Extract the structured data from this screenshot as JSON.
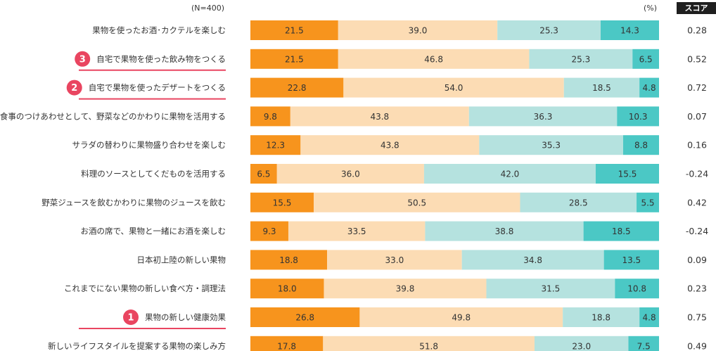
{
  "chart_data": {
    "type": "bar",
    "stacked": true,
    "orientation": "horizontal",
    "sample_note": "(N=400)",
    "unit_label": "(%)",
    "score_header": "スコア",
    "colors": [
      "#f7941d",
      "#fcdcb4",
      "#b5e2df",
      "#4bc8c5"
    ],
    "highlight_color": "#e94560",
    "rows": [
      {
        "label": "果物を使ったお酒･カクテルを楽しむ",
        "values": [
          21.5,
          39.0,
          25.3,
          14.3
        ],
        "score": "0.28",
        "rank": ""
      },
      {
        "label": "自宅で果物を使った飲み物をつくる",
        "values": [
          21.5,
          46.8,
          25.3,
          6.5
        ],
        "score": "0.52",
        "rank": "3"
      },
      {
        "label": "自宅で果物を使ったデザートをつくる",
        "values": [
          22.8,
          54.0,
          18.5,
          4.8
        ],
        "score": "0.72",
        "rank": "2"
      },
      {
        "label": "食事のつけあわせとして、野菜などのかわりに果物を活用する",
        "values": [
          9.8,
          43.8,
          36.3,
          10.3
        ],
        "score": "0.07",
        "rank": ""
      },
      {
        "label": "サラダの替わりに果物盛り合わせを楽しむ",
        "values": [
          12.3,
          43.8,
          35.3,
          8.8
        ],
        "score": "0.16",
        "rank": ""
      },
      {
        "label": "料理のソースとしてくだものを活用する",
        "values": [
          6.5,
          36.0,
          42.0,
          15.5
        ],
        "score": "-0.24",
        "rank": ""
      },
      {
        "label": "野菜ジュースを飲むかわりに果物のジュースを飲む",
        "values": [
          15.5,
          50.5,
          28.5,
          5.5
        ],
        "score": "0.42",
        "rank": ""
      },
      {
        "label": "お酒の席で、果物と一緒にお酒を楽しむ",
        "values": [
          9.3,
          33.5,
          38.8,
          18.5
        ],
        "score": "-0.24",
        "rank": ""
      },
      {
        "label": "日本初上陸の新しい果物",
        "values": [
          18.8,
          33.0,
          34.8,
          13.5
        ],
        "score": "0.09",
        "rank": ""
      },
      {
        "label": "これまでにない果物の新しい食べ方・調理法",
        "values": [
          18.0,
          39.8,
          31.5,
          10.8
        ],
        "score": "0.23",
        "rank": ""
      },
      {
        "label": "果物の新しい健康効果",
        "values": [
          26.8,
          49.8,
          18.8,
          4.8
        ],
        "score": "0.75",
        "rank": "1"
      },
      {
        "label": "新しいライフスタイルを提案する果物の楽しみ方",
        "values": [
          17.8,
          51.8,
          23.0,
          7.5
        ],
        "score": "0.49",
        "rank": ""
      }
    ]
  }
}
